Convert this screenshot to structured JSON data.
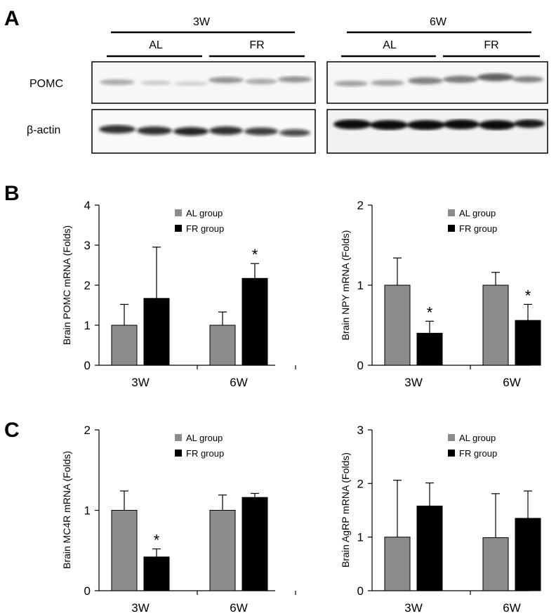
{
  "panels": {
    "a": "A",
    "b": "B",
    "c": "C"
  },
  "blot": {
    "time_left": "3W",
    "time_right": "6W",
    "group_al": "AL",
    "group_fr": "FR",
    "row_pomc": "POMC",
    "row_actin": "β-actin"
  },
  "colors": {
    "al": "#8c8c8c",
    "fr": "#000000"
  },
  "significance_marker": "*",
  "chart_data": [
    {
      "type": "bar",
      "categories": [
        "3W",
        "6W"
      ],
      "ylabel": "Brain POMC mRNA (Folds)",
      "ylim": [
        0,
        4
      ],
      "yticks": [
        0,
        1,
        2,
        3,
        4
      ],
      "series": [
        {
          "name": "AL group",
          "values": [
            1.0,
            1.0
          ],
          "errors": [
            0.52,
            0.33
          ]
        },
        {
          "name": "FR group",
          "values": [
            1.67,
            2.17
          ],
          "errors": [
            1.28,
            0.37
          ]
        }
      ],
      "significance": [
        [
          false,
          false
        ],
        [
          false,
          true
        ]
      ]
    },
    {
      "type": "bar",
      "categories": [
        "3W",
        "6W"
      ],
      "ylabel": "Brain NPY mRNA (Folds)",
      "ylim": [
        0,
        2
      ],
      "yticks": [
        0,
        1,
        2
      ],
      "series": [
        {
          "name": "AL group",
          "values": [
            1.0,
            1.0
          ],
          "errors": [
            0.34,
            0.16
          ]
        },
        {
          "name": "FR group",
          "values": [
            0.4,
            0.56
          ],
          "errors": [
            0.15,
            0.2
          ]
        }
      ],
      "significance": [
        [
          false,
          false
        ],
        [
          true,
          true
        ]
      ]
    },
    {
      "type": "bar",
      "categories": [
        "3W",
        "6W"
      ],
      "ylabel": "Brain MC4R mRNA (Folds)",
      "ylim": [
        0,
        2
      ],
      "yticks": [
        0,
        1,
        2
      ],
      "series": [
        {
          "name": "AL group",
          "values": [
            1.0,
            1.0
          ],
          "errors": [
            0.24,
            0.19
          ]
        },
        {
          "name": "FR group",
          "values": [
            0.42,
            1.16
          ],
          "errors": [
            0.1,
            0.05
          ]
        }
      ],
      "significance": [
        [
          false,
          false
        ],
        [
          true,
          false
        ]
      ]
    },
    {
      "type": "bar",
      "categories": [
        "3W",
        "6W"
      ],
      "ylabel": "Brain AgRP mRNA (Folds)",
      "ylim": [
        0,
        3
      ],
      "yticks": [
        0,
        1,
        2,
        3
      ],
      "series": [
        {
          "name": "AL group",
          "values": [
            1.0,
            0.99
          ],
          "errors": [
            1.06,
            0.82
          ]
        },
        {
          "name": "FR group",
          "values": [
            1.58,
            1.35
          ],
          "errors": [
            0.43,
            0.51
          ]
        }
      ],
      "significance": [
        [
          false,
          false
        ],
        [
          false,
          false
        ]
      ]
    }
  ]
}
